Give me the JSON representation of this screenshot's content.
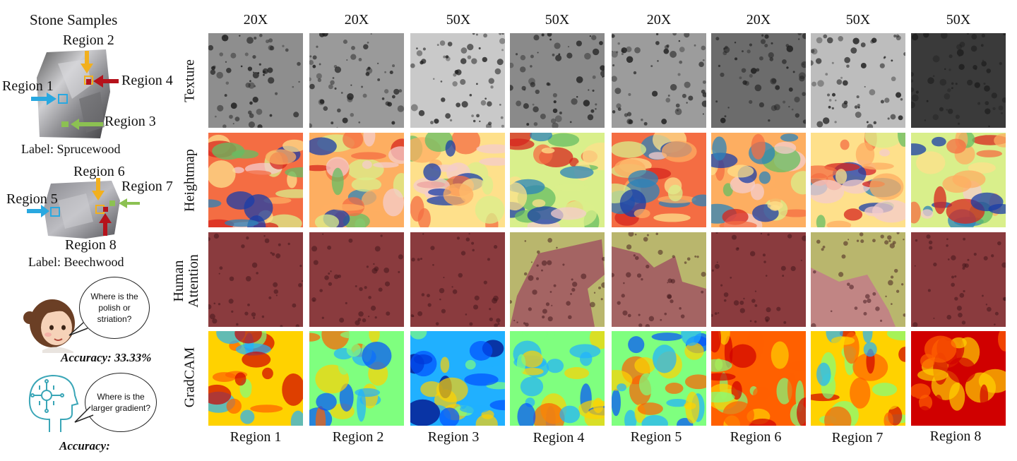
{
  "left_panel": {
    "title": "Stone Samples",
    "sample1": {
      "label": "Label:  Sprucewood",
      "regions": [
        "Region 1",
        "Region 2",
        "Region 3",
        "Region 4"
      ]
    },
    "sample2": {
      "label": "Label:  Beechwood",
      "regions": [
        "Region 5",
        "Region 6",
        "Region 7",
        "Region 8"
      ]
    },
    "human": {
      "question": "Where is the polish or striation?",
      "question_lines": [
        "Where is the",
        "polish  or",
        "striation?"
      ],
      "accuracy": "Accuracy: 33.33%",
      "icon": "human-face-icon"
    },
    "ai": {
      "question": "Where is the larger gradient?",
      "question_lines": [
        "Where is the",
        "larger gradient?"
      ],
      "accuracy": "Accuracy:",
      "icon": "ai-brain-icon"
    }
  },
  "grid": {
    "magnifications": [
      "20X",
      "20X",
      "50X",
      "50X",
      "20X",
      "20X",
      "50X",
      "50X"
    ],
    "row_labels": [
      "Texture",
      "Heightmap",
      "Human Attention",
      "GradCAM"
    ],
    "row_label_lines": [
      [
        "Texture"
      ],
      [
        "Heightmap"
      ],
      [
        "Human",
        "Attention"
      ],
      [
        "GradCAM"
      ]
    ],
    "column_labels": [
      "Region 1",
      "Region 2",
      "Region 3",
      "Region 4",
      "Region 5",
      "Region 6",
      "Region 7",
      "Region 8"
    ]
  },
  "colors": {
    "region1_arrow": "#29a8e0",
    "region2_arrow": "#f2b01e",
    "region3_arrow": "#8cc152",
    "region4_arrow": "#b5121b",
    "human_attention_red": "#c98486",
    "human_attention_yellow": "#c9c77a"
  }
}
